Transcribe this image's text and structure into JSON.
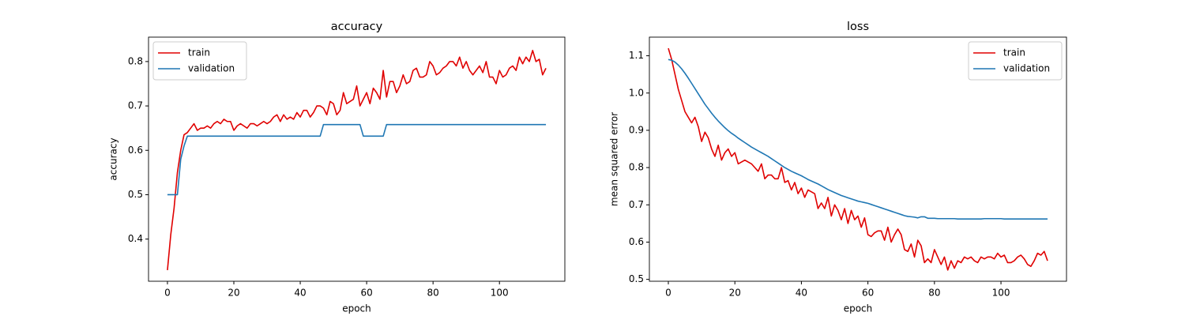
{
  "chart_data": [
    {
      "type": "line",
      "title": "accuracy",
      "x_label": "epoch",
      "y_label": "accuracy",
      "x": [
        0,
        1,
        2,
        3,
        4,
        5,
        6,
        7,
        8,
        9,
        10,
        11,
        12,
        13,
        14,
        15,
        16,
        17,
        18,
        19,
        20,
        21,
        22,
        23,
        24,
        25,
        26,
        27,
        28,
        29,
        30,
        31,
        32,
        33,
        34,
        35,
        36,
        37,
        38,
        39,
        40,
        41,
        42,
        43,
        44,
        45,
        46,
        47,
        48,
        49,
        50,
        51,
        52,
        53,
        54,
        55,
        56,
        57,
        58,
        59,
        60,
        61,
        62,
        63,
        64,
        65,
        66,
        67,
        68,
        69,
        70,
        71,
        72,
        73,
        74,
        75,
        76,
        77,
        78,
        79,
        80,
        81,
        82,
        83,
        84,
        85,
        86,
        87,
        88,
        89,
        90,
        91,
        92,
        93,
        94,
        95,
        96,
        97,
        98,
        99,
        100,
        101,
        102,
        103,
        104,
        105,
        106,
        107,
        108,
        109,
        110,
        111,
        112,
        113,
        114
      ],
      "series": [
        {
          "name": "train",
          "color": "#e00000",
          "values": [
            0.33,
            0.41,
            0.47,
            0.55,
            0.6,
            0.635,
            0.64,
            0.65,
            0.66,
            0.645,
            0.65,
            0.65,
            0.655,
            0.65,
            0.66,
            0.665,
            0.66,
            0.67,
            0.665,
            0.665,
            0.645,
            0.655,
            0.66,
            0.655,
            0.65,
            0.66,
            0.66,
            0.655,
            0.66,
            0.665,
            0.66,
            0.665,
            0.675,
            0.68,
            0.665,
            0.68,
            0.67,
            0.675,
            0.67,
            0.685,
            0.675,
            0.69,
            0.69,
            0.675,
            0.685,
            0.7,
            0.7,
            0.695,
            0.68,
            0.71,
            0.705,
            0.68,
            0.69,
            0.73,
            0.705,
            0.71,
            0.715,
            0.745,
            0.7,
            0.715,
            0.73,
            0.705,
            0.74,
            0.73,
            0.715,
            0.78,
            0.72,
            0.755,
            0.755,
            0.73,
            0.745,
            0.77,
            0.75,
            0.755,
            0.78,
            0.785,
            0.765,
            0.765,
            0.77,
            0.8,
            0.79,
            0.77,
            0.775,
            0.785,
            0.79,
            0.8,
            0.8,
            0.79,
            0.81,
            0.785,
            0.8,
            0.78,
            0.77,
            0.78,
            0.79,
            0.775,
            0.8,
            0.765,
            0.765,
            0.75,
            0.78,
            0.765,
            0.77,
            0.785,
            0.79,
            0.78,
            0.81,
            0.795,
            0.81,
            0.8,
            0.825,
            0.8,
            0.805,
            0.77,
            0.785
          ]
        },
        {
          "name": "validation",
          "color": "#1f77b4",
          "values": [
            0.5,
            0.5,
            0.5,
            0.5,
            0.58,
            0.61,
            0.632,
            0.632,
            0.632,
            0.632,
            0.632,
            0.632,
            0.632,
            0.632,
            0.632,
            0.632,
            0.632,
            0.632,
            0.632,
            0.632,
            0.632,
            0.632,
            0.632,
            0.632,
            0.632,
            0.632,
            0.632,
            0.632,
            0.632,
            0.632,
            0.632,
            0.632,
            0.632,
            0.632,
            0.632,
            0.632,
            0.632,
            0.632,
            0.632,
            0.632,
            0.632,
            0.632,
            0.632,
            0.632,
            0.632,
            0.632,
            0.632,
            0.658,
            0.658,
            0.658,
            0.658,
            0.658,
            0.658,
            0.658,
            0.658,
            0.658,
            0.658,
            0.658,
            0.658,
            0.632,
            0.632,
            0.632,
            0.632,
            0.632,
            0.632,
            0.632,
            0.658,
            0.658,
            0.658,
            0.658,
            0.658,
            0.658,
            0.658,
            0.658,
            0.658,
            0.658,
            0.658,
            0.658,
            0.658,
            0.658,
            0.658,
            0.658,
            0.658,
            0.658,
            0.658,
            0.658,
            0.658,
            0.658,
            0.658,
            0.658,
            0.658,
            0.658,
            0.658,
            0.658,
            0.658,
            0.658,
            0.658,
            0.658,
            0.658,
            0.658,
            0.658,
            0.658,
            0.658,
            0.658,
            0.658,
            0.658,
            0.658,
            0.658,
            0.658,
            0.658,
            0.658,
            0.658,
            0.658,
            0.658,
            0.658
          ]
        }
      ],
      "xlim": [
        -5.7,
        119.7
      ],
      "xticks": [
        0,
        20,
        40,
        60,
        80,
        100
      ],
      "ylim": [
        0.305,
        0.855
      ],
      "yticks": [
        0.4,
        0.5,
        0.6,
        0.7,
        0.8
      ],
      "legend": "upper left"
    },
    {
      "type": "line",
      "title": "loss",
      "x_label": "epoch",
      "y_label": "mean squared error",
      "x": [
        0,
        1,
        2,
        3,
        4,
        5,
        6,
        7,
        8,
        9,
        10,
        11,
        12,
        13,
        14,
        15,
        16,
        17,
        18,
        19,
        20,
        21,
        22,
        23,
        24,
        25,
        26,
        27,
        28,
        29,
        30,
        31,
        32,
        33,
        34,
        35,
        36,
        37,
        38,
        39,
        40,
        41,
        42,
        43,
        44,
        45,
        46,
        47,
        48,
        49,
        50,
        51,
        52,
        53,
        54,
        55,
        56,
        57,
        58,
        59,
        60,
        61,
        62,
        63,
        64,
        65,
        66,
        67,
        68,
        69,
        70,
        71,
        72,
        73,
        74,
        75,
        76,
        77,
        78,
        79,
        80,
        81,
        82,
        83,
        84,
        85,
        86,
        87,
        88,
        89,
        90,
        91,
        92,
        93,
        94,
        95,
        96,
        97,
        98,
        99,
        100,
        101,
        102,
        103,
        104,
        105,
        106,
        107,
        108,
        109,
        110,
        111,
        112,
        113,
        114
      ],
      "series": [
        {
          "name": "train",
          "color": "#e00000",
          "values": [
            1.12,
            1.09,
            1.05,
            1.01,
            0.98,
            0.95,
            0.935,
            0.92,
            0.935,
            0.91,
            0.87,
            0.895,
            0.88,
            0.85,
            0.83,
            0.86,
            0.82,
            0.84,
            0.85,
            0.83,
            0.84,
            0.81,
            0.815,
            0.82,
            0.815,
            0.81,
            0.8,
            0.79,
            0.81,
            0.77,
            0.78,
            0.78,
            0.77,
            0.77,
            0.8,
            0.76,
            0.765,
            0.74,
            0.76,
            0.73,
            0.745,
            0.72,
            0.74,
            0.735,
            0.73,
            0.69,
            0.705,
            0.69,
            0.72,
            0.67,
            0.7,
            0.685,
            0.66,
            0.69,
            0.65,
            0.685,
            0.66,
            0.67,
            0.64,
            0.665,
            0.62,
            0.615,
            0.625,
            0.63,
            0.63,
            0.605,
            0.64,
            0.6,
            0.62,
            0.635,
            0.62,
            0.58,
            0.575,
            0.595,
            0.56,
            0.605,
            0.59,
            0.545,
            0.555,
            0.545,
            0.58,
            0.56,
            0.54,
            0.56,
            0.525,
            0.55,
            0.53,
            0.55,
            0.545,
            0.56,
            0.555,
            0.56,
            0.55,
            0.545,
            0.56,
            0.555,
            0.56,
            0.56,
            0.555,
            0.57,
            0.56,
            0.565,
            0.545,
            0.545,
            0.55,
            0.56,
            0.565,
            0.555,
            0.54,
            0.535,
            0.55,
            0.57,
            0.565,
            0.575,
            0.55
          ]
        },
        {
          "name": "validation",
          "color": "#1f77b4",
          "values": [
            1.09,
            1.088,
            1.083,
            1.075,
            1.065,
            1.053,
            1.04,
            1.026,
            1.012,
            0.998,
            0.984,
            0.97,
            0.958,
            0.946,
            0.935,
            0.925,
            0.916,
            0.907,
            0.899,
            0.892,
            0.886,
            0.879,
            0.873,
            0.867,
            0.861,
            0.855,
            0.85,
            0.845,
            0.84,
            0.835,
            0.83,
            0.824,
            0.818,
            0.812,
            0.806,
            0.8,
            0.795,
            0.79,
            0.786,
            0.782,
            0.778,
            0.773,
            0.768,
            0.764,
            0.76,
            0.756,
            0.751,
            0.746,
            0.741,
            0.737,
            0.733,
            0.729,
            0.725,
            0.722,
            0.719,
            0.716,
            0.713,
            0.71,
            0.708,
            0.706,
            0.704,
            0.701,
            0.698,
            0.695,
            0.692,
            0.689,
            0.686,
            0.683,
            0.68,
            0.677,
            0.674,
            0.671,
            0.669,
            0.668,
            0.667,
            0.665,
            0.668,
            0.668,
            0.664,
            0.664,
            0.664,
            0.663,
            0.663,
            0.663,
            0.663,
            0.663,
            0.663,
            0.662,
            0.662,
            0.662,
            0.662,
            0.662,
            0.662,
            0.662,
            0.662,
            0.663,
            0.663,
            0.663,
            0.663,
            0.663,
            0.663,
            0.662,
            0.662,
            0.662,
            0.662,
            0.662,
            0.662,
            0.662,
            0.662,
            0.662,
            0.662,
            0.662,
            0.662,
            0.662,
            0.662
          ]
        }
      ],
      "xlim": [
        -5.7,
        119.7
      ],
      "xticks": [
        0,
        20,
        40,
        60,
        80,
        100
      ],
      "ylim": [
        0.495,
        1.15
      ],
      "yticks": [
        0.5,
        0.6,
        0.7,
        0.8,
        0.9,
        {
          "value": 1,
          "label": "1.0"
        },
        1.1
      ],
      "legend": "upper right"
    }
  ]
}
